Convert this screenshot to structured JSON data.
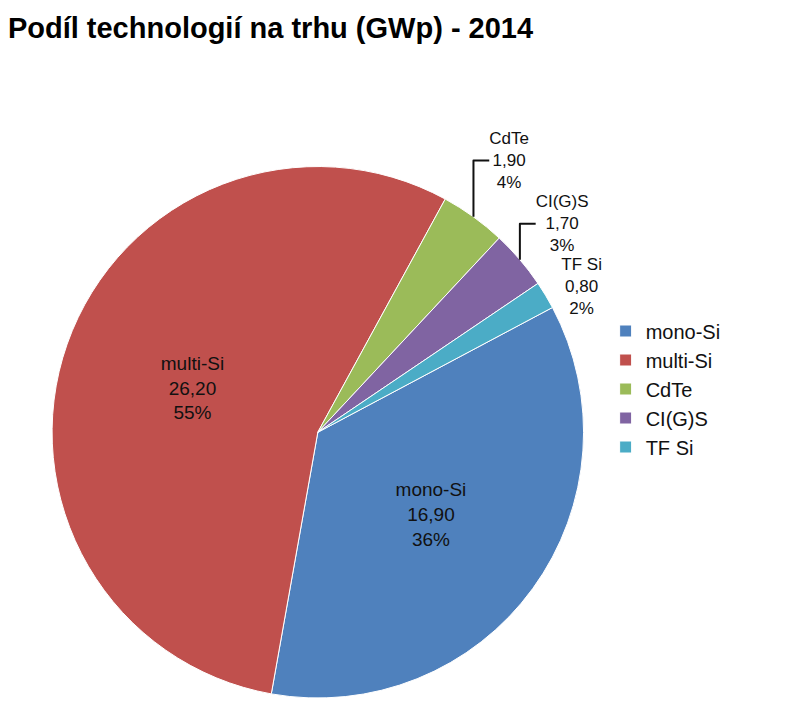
{
  "chart_data": {
    "type": "pie",
    "title": "Podíl technologií na trhu (GWp) - 2014",
    "categories": [
      "mono-Si",
      "multi-Si",
      "CdTe",
      "CI(G)S",
      "TF Si"
    ],
    "values": [
      16.9,
      26.2,
      1.9,
      1.7,
      0.8
    ],
    "value_labels": [
      "16,90",
      "26,20",
      "1,90",
      "1,70",
      "0,80"
    ],
    "percents": [
      36,
      55,
      4,
      3,
      2
    ],
    "percent_labels": [
      "36%",
      "55%",
      "4%",
      "3%",
      "2%"
    ],
    "colors": [
      "#4f81bd",
      "#c0504d",
      "#9bbb59",
      "#8064a2",
      "#4bacc6"
    ],
    "legend": "right",
    "data_labels": true
  }
}
